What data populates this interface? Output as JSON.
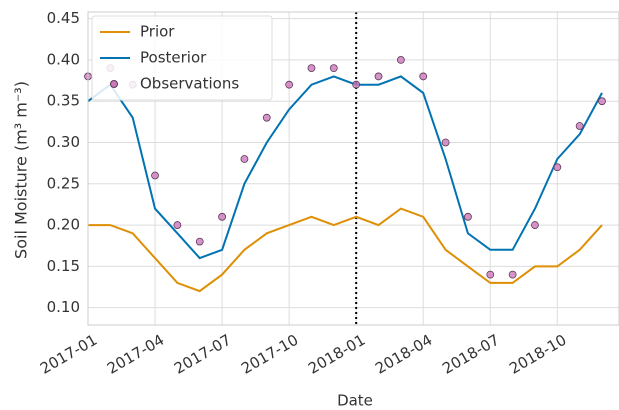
{
  "chart_data": {
    "type": "line",
    "x_label": "Date",
    "y_label": "Soil Moisture (m³ m⁻³)",
    "x": [
      "2017-01",
      "2017-02",
      "2017-03",
      "2017-04",
      "2017-05",
      "2017-06",
      "2017-07",
      "2017-08",
      "2017-09",
      "2017-10",
      "2017-11",
      "2017-12",
      "2018-01",
      "2018-02",
      "2018-03",
      "2018-04",
      "2018-05",
      "2018-06",
      "2018-07",
      "2018-08",
      "2018-09",
      "2018-10",
      "2018-11",
      "2018-12"
    ],
    "series": [
      {
        "name": "Prior",
        "color": "#de8f05",
        "values": [
          0.2,
          0.2,
          0.19,
          0.16,
          0.13,
          0.12,
          0.14,
          0.17,
          0.19,
          0.2,
          0.21,
          0.2,
          0.21,
          0.2,
          0.22,
          0.21,
          0.17,
          0.15,
          0.13,
          0.13,
          0.15,
          0.15,
          0.17,
          0.2
        ]
      },
      {
        "name": "Posterior",
        "color": "#0173b2",
        "values": [
          0.35,
          0.37,
          0.33,
          0.22,
          0.19,
          0.16,
          0.17,
          0.25,
          0.3,
          0.34,
          0.37,
          0.38,
          0.37,
          0.37,
          0.38,
          0.36,
          0.28,
          0.19,
          0.17,
          0.17,
          0.22,
          0.28,
          0.31,
          0.36
        ]
      },
      {
        "name": "Observations",
        "color": "#cc78bc",
        "marker": "scatter",
        "values": [
          0.38,
          0.39,
          0.37,
          0.26,
          0.2,
          0.18,
          0.21,
          0.28,
          0.33,
          0.37,
          0.39,
          0.39,
          0.37,
          0.38,
          0.4,
          0.38,
          0.3,
          0.21,
          0.14,
          0.14,
          0.2,
          0.27,
          0.32,
          0.35
        ]
      }
    ],
    "xlim": [
      "2017-01",
      "2018-12"
    ],
    "xticks": [
      "2017-01",
      "2017-04",
      "2017-07",
      "2017-10",
      "2018-01",
      "2018-04",
      "2018-07",
      "2018-10"
    ],
    "ylim": [
      0.079,
      0.458
    ],
    "yticks": [
      {
        "value": 0.1,
        "label": "0.10"
      },
      {
        "value": 0.15,
        "label": "0.15"
      },
      {
        "value": 0.2,
        "label": "0.20"
      },
      {
        "value": 0.25,
        "label": "0.25"
      },
      {
        "value": 0.3,
        "label": "0.30"
      },
      {
        "value": 0.35,
        "label": "0.35"
      },
      {
        "value": 0.4,
        "label": "0.40"
      },
      {
        "value": 0.45,
        "label": "0.45"
      }
    ],
    "vline": "2018-01",
    "grid": true,
    "legend": "upper-left"
  }
}
